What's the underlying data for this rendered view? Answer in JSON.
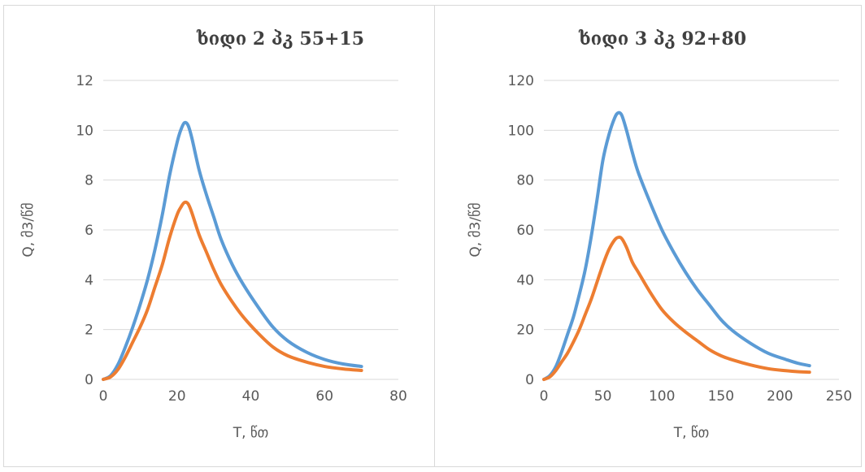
{
  "chart_data": [
    {
      "type": "line",
      "title": "ხიდი 2 პკ 55+15",
      "xlabel": "T, წთ",
      "ylabel": "Q, მ3/წმ",
      "xlim": [
        0,
        80
      ],
      "ylim": [
        0,
        12
      ],
      "xticks": [
        "0",
        "20",
        "40",
        "60",
        "80"
      ],
      "yticks": [
        "0",
        "2",
        "4",
        "6",
        "8",
        "10",
        "12"
      ],
      "grid": "horizontal",
      "legend": "none",
      "series": [
        {
          "color": "#5b9bd5",
          "x": [
            0,
            2,
            4,
            6,
            8,
            10,
            12,
            14,
            16,
            18,
            20,
            21,
            22,
            23,
            24,
            26,
            28,
            30,
            32,
            35,
            38,
            42,
            46,
            50,
            55,
            60,
            65,
            70
          ],
          "y": [
            0,
            0.15,
            0.6,
            1.3,
            2.1,
            3.0,
            4.0,
            5.2,
            6.6,
            8.2,
            9.5,
            10.0,
            10.3,
            10.2,
            9.7,
            8.4,
            7.4,
            6.5,
            5.6,
            4.6,
            3.8,
            2.9,
            2.1,
            1.55,
            1.1,
            0.8,
            0.62,
            0.52
          ]
        },
        {
          "color": "#ed7d31",
          "x": [
            0,
            2,
            4,
            6,
            8,
            10,
            12,
            14,
            16,
            18,
            20,
            21,
            22,
            23,
            24,
            26,
            28,
            30,
            32,
            35,
            38,
            42,
            46,
            50,
            55,
            60,
            65,
            70
          ],
          "y": [
            0,
            0.1,
            0.4,
            0.9,
            1.5,
            2.1,
            2.8,
            3.7,
            4.6,
            5.7,
            6.6,
            6.9,
            7.1,
            7.05,
            6.7,
            5.8,
            5.1,
            4.4,
            3.8,
            3.1,
            2.5,
            1.85,
            1.3,
            0.95,
            0.7,
            0.52,
            0.42,
            0.36
          ]
        }
      ]
    },
    {
      "type": "line",
      "title": "ხიდი 3 პკ 92+80",
      "xlabel": "T, წთ",
      "ylabel": "Q, მ3/წმ",
      "xlim": [
        0,
        250
      ],
      "ylim": [
        0,
        120
      ],
      "xticks": [
        "0",
        "50",
        "100",
        "150",
        "200",
        "250"
      ],
      "yticks": [
        "0",
        "20",
        "40",
        "60",
        "80",
        "100",
        "120"
      ],
      "grid": "horizontal",
      "legend": "none",
      "series": [
        {
          "color": "#5b9bd5",
          "x": [
            0,
            5,
            10,
            15,
            20,
            25,
            30,
            35,
            40,
            45,
            50,
            55,
            60,
            63,
            66,
            70,
            75,
            80,
            90,
            100,
            110,
            120,
            130,
            140,
            150,
            160,
            175,
            190,
            205,
            215,
            225
          ],
          "y": [
            0,
            1.5,
            5,
            11,
            18,
            25,
            34,
            44,
            57,
            72,
            88,
            98,
            105,
            107,
            106,
            100,
            91,
            83,
            71,
            60,
            51,
            43,
            36,
            30,
            24,
            19.5,
            14.5,
            10.5,
            8,
            6.5,
            5.5
          ]
        },
        {
          "color": "#ed7d31",
          "x": [
            0,
            5,
            10,
            15,
            20,
            25,
            30,
            35,
            40,
            45,
            50,
            55,
            60,
            63,
            66,
            70,
            75,
            80,
            90,
            100,
            110,
            120,
            130,
            140,
            150,
            160,
            175,
            190,
            205,
            215,
            225
          ],
          "y": [
            0,
            1,
            3.5,
            7,
            10.5,
            15,
            20,
            26,
            32,
            39,
            46,
            52,
            56,
            57,
            56.5,
            53,
            47,
            43,
            35,
            28,
            23,
            19,
            15.5,
            12,
            9.5,
            7.8,
            5.8,
            4.3,
            3.5,
            3.1,
            2.9
          ]
        }
      ]
    }
  ]
}
